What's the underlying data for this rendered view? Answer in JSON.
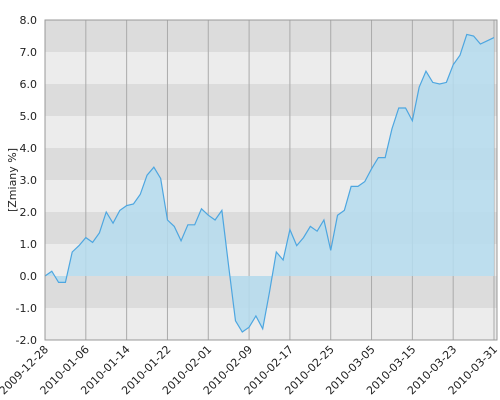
{
  "chart_data": {
    "type": "area",
    "y_label": "[Zmiany %]",
    "categories": [
      "2009-12-28",
      null,
      null,
      null,
      null,
      null,
      "2010-01-06",
      null,
      null,
      null,
      null,
      null,
      "2010-01-14",
      null,
      null,
      null,
      null,
      null,
      "2010-01-22",
      null,
      null,
      null,
      null,
      null,
      "2010-02-01",
      null,
      null,
      null,
      null,
      null,
      "2010-02-09",
      null,
      null,
      null,
      null,
      null,
      "2010-02-17",
      null,
      null,
      null,
      null,
      null,
      "2010-02-25",
      null,
      null,
      null,
      null,
      null,
      "2010-03-05",
      null,
      null,
      null,
      null,
      null,
      "2010-03-15",
      null,
      null,
      null,
      null,
      null,
      "2010-03-23",
      null,
      null,
      null,
      null,
      null,
      "2010-03-31"
    ],
    "values": [
      0.0,
      0.15,
      -0.2,
      -0.2,
      0.75,
      0.95,
      1.2,
      1.05,
      1.35,
      2.0,
      1.65,
      2.05,
      2.2,
      2.25,
      2.55,
      3.15,
      3.4,
      3.05,
      1.75,
      1.55,
      1.1,
      1.6,
      1.6,
      2.1,
      1.9,
      1.75,
      2.05,
      0.3,
      -1.4,
      -1.75,
      -1.6,
      -1.25,
      -1.65,
      -0.5,
      0.75,
      0.5,
      1.45,
      0.95,
      1.2,
      1.55,
      1.4,
      1.75,
      0.8,
      1.9,
      2.05,
      2.8,
      2.8,
      2.95,
      3.35,
      3.7,
      3.7,
      4.6,
      5.25,
      5.25,
      4.85,
      5.9,
      6.4,
      6.05,
      6.0,
      6.05,
      6.6,
      6.9,
      7.55,
      7.5,
      7.25,
      7.35,
      7.45
    ],
    "color": "#4da6e0",
    "fill": "#b5dcee",
    "ylim": [
      -2,
      8
    ],
    "yticks": [
      {
        "value": -2,
        "label": "-2.0"
      },
      {
        "value": -1,
        "label": "-1.0"
      },
      {
        "value": 0,
        "label": "0.0"
      },
      {
        "value": 1,
        "label": "1.0"
      },
      {
        "value": 2,
        "label": "2.0"
      },
      {
        "value": 3,
        "label": "3.0"
      },
      {
        "value": 4,
        "label": "4.0"
      },
      {
        "value": 5,
        "label": "5.0"
      },
      {
        "value": 6,
        "label": "6.0"
      },
      {
        "value": 7,
        "label": "7.0"
      },
      {
        "value": 8,
        "label": "8.0"
      }
    ],
    "grid": true
  }
}
